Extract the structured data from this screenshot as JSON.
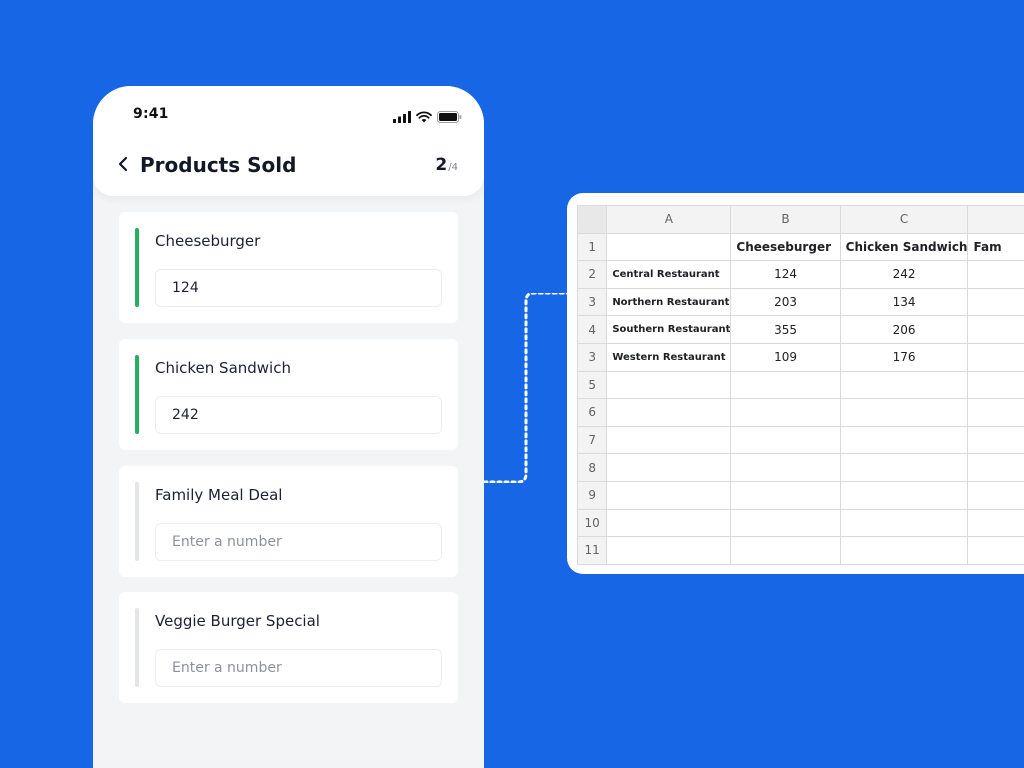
{
  "phone": {
    "status_time": "9:41",
    "title": "Products Sold",
    "page_current": "2",
    "page_total": "/4",
    "fields": [
      {
        "label": "Cheeseburger",
        "value": "124",
        "placeholder": "Enter a number",
        "bar_color": "#27ae60"
      },
      {
        "label": "Chicken Sandwich",
        "value": "242",
        "placeholder": "Enter a number",
        "bar_color": "#27ae60"
      },
      {
        "label": "Family Meal Deal",
        "value": "",
        "placeholder": "Enter a number",
        "bar_color": "#e3e5e8"
      },
      {
        "label": "Veggie Burger Special",
        "value": "",
        "placeholder": "Enter a number",
        "bar_color": "#e3e5e8"
      }
    ]
  },
  "sheet": {
    "columns": [
      "A",
      "B",
      "C",
      ""
    ],
    "header_row": {
      "num": "1",
      "cells": [
        "",
        "Cheeseburger",
        "Chicken Sandwich",
        "Fam"
      ]
    },
    "rows": [
      {
        "num": "2",
        "name": "Central Restaurant",
        "b": "124",
        "c": "242"
      },
      {
        "num": "3",
        "name": "Northern Restaurant",
        "b": "203",
        "c": "134"
      },
      {
        "num": "4",
        "name": "Southern Restaurant",
        "b": "355",
        "c": "206"
      },
      {
        "num": "3",
        "name": "Western Restaurant",
        "b": "109",
        "c": "176"
      }
    ],
    "empty_rows": [
      "5",
      "6",
      "7",
      "8",
      "9",
      "10",
      "11"
    ]
  },
  "colors": {
    "background": "#1766e6",
    "filled_bar": "#27ae60",
    "empty_bar": "#e3e5e8"
  }
}
